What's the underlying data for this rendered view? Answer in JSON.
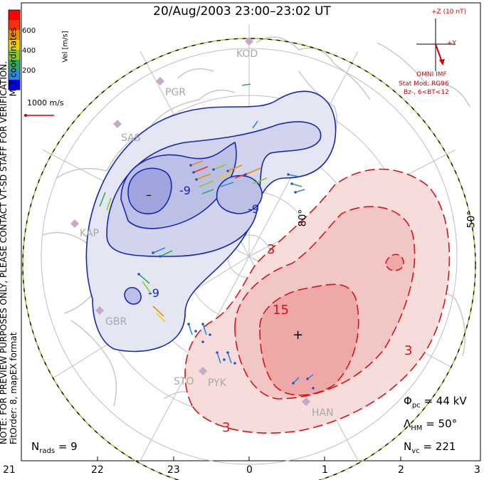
{
  "title": "20/Aug/2003 23:00–23:02 UT",
  "side_note": {
    "line1": "NOTE: FOR PREVIEW PURPOSES ONLY, PLEASE CONTACT VT-SD STAFF FOR VERIFICATION.",
    "line2": "FitOrder: 8, mapEX format",
    "mlt_coordinates": "MLT coordinates"
  },
  "colorbar": {
    "label": "Vel [m/s]",
    "ticks": [
      "600",
      "400",
      "200"
    ],
    "colors": [
      "#0000ff",
      "#2a8ad8",
      "#2fa860",
      "#8ccc22",
      "#f0d000",
      "#f08c00",
      "#f03010",
      "#ff0000"
    ]
  },
  "scale": {
    "label": "1000 m/s"
  },
  "imf": {
    "z_label": "+Z (10 nT)",
    "y_label": "+Y",
    "source": "OMNI IMF",
    "model": "Stat Mod: RG96",
    "condition": "Bz-, 6<BT<12",
    "color": "#d40000"
  },
  "radars": [
    "KOD",
    "PGR",
    "SAS",
    "KAP",
    "GBR",
    "STO",
    "PYK",
    "HAN"
  ],
  "latitude_labels": [
    "80°",
    "50°"
  ],
  "contour_labels": {
    "neg_nine_a": "-9",
    "neg_nine_b": "-9",
    "neg_nine_c": "-9",
    "pos_three_a": "3",
    "pos_three_b": "3",
    "pos_three_c": "3",
    "pos_fifteen": "15"
  },
  "extrema": {
    "minimum": "–",
    "maximum": "+"
  },
  "stats": {
    "phi_pc": "= 44 kV",
    "lambda_hm": "= 50°",
    "n_vc": "= 221",
    "n_rads": "= 9"
  },
  "mlt_axis": [
    "21",
    "22",
    "23",
    "0",
    "1",
    "2",
    "3"
  ],
  "colors": {
    "negative_cell": "#1428b4",
    "positive_cell": "#d41414",
    "boundary_dash": "#8cc828"
  }
}
